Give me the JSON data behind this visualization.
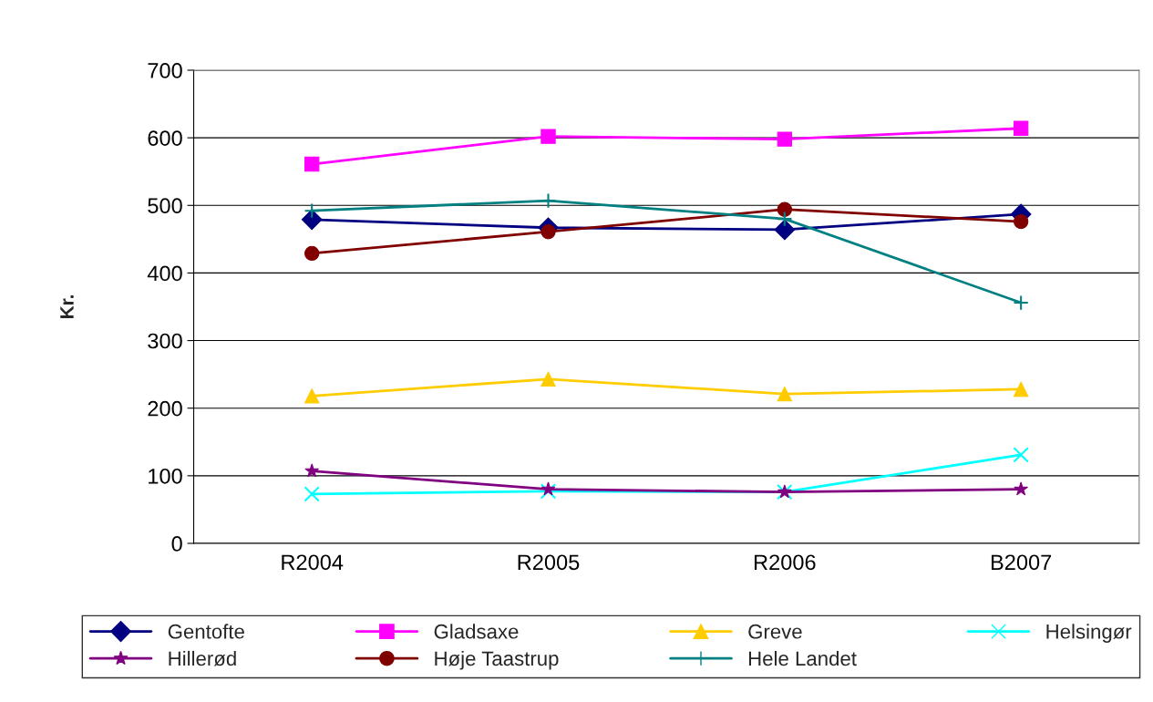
{
  "chart_data": {
    "type": "line",
    "ylabel": "Kr.",
    "categories": [
      "R2004",
      "R2005",
      "R2006",
      "B2007"
    ],
    "ylim": [
      0,
      700
    ],
    "yticks": [
      0,
      100,
      200,
      300,
      400,
      500,
      600,
      700
    ],
    "grid": "y",
    "legend": "bottom",
    "series": [
      {
        "name": "Gentofte",
        "color": "#000080",
        "marker": "diamond",
        "values": [
          479,
          467,
          464,
          487
        ]
      },
      {
        "name": "Gladsaxe",
        "color": "#ff00ff",
        "marker": "square",
        "values": [
          561,
          602,
          598,
          614
        ]
      },
      {
        "name": "Greve",
        "color": "#ffcc00",
        "marker": "triangle",
        "values": [
          218,
          243,
          221,
          228
        ]
      },
      {
        "name": "Helsingør",
        "color": "#00ffff",
        "marker": "cross",
        "values": [
          73,
          77,
          76,
          131
        ]
      },
      {
        "name": "Hillerød",
        "color": "#800080",
        "marker": "star",
        "values": [
          107,
          80,
          76,
          80
        ]
      },
      {
        "name": "Høje Taastrup",
        "color": "#800000",
        "marker": "circle",
        "values": [
          429,
          461,
          494,
          476
        ]
      },
      {
        "name": "Hele Landet",
        "color": "#008080",
        "marker": "plus",
        "values": [
          492,
          507,
          480,
          356
        ]
      }
    ]
  }
}
